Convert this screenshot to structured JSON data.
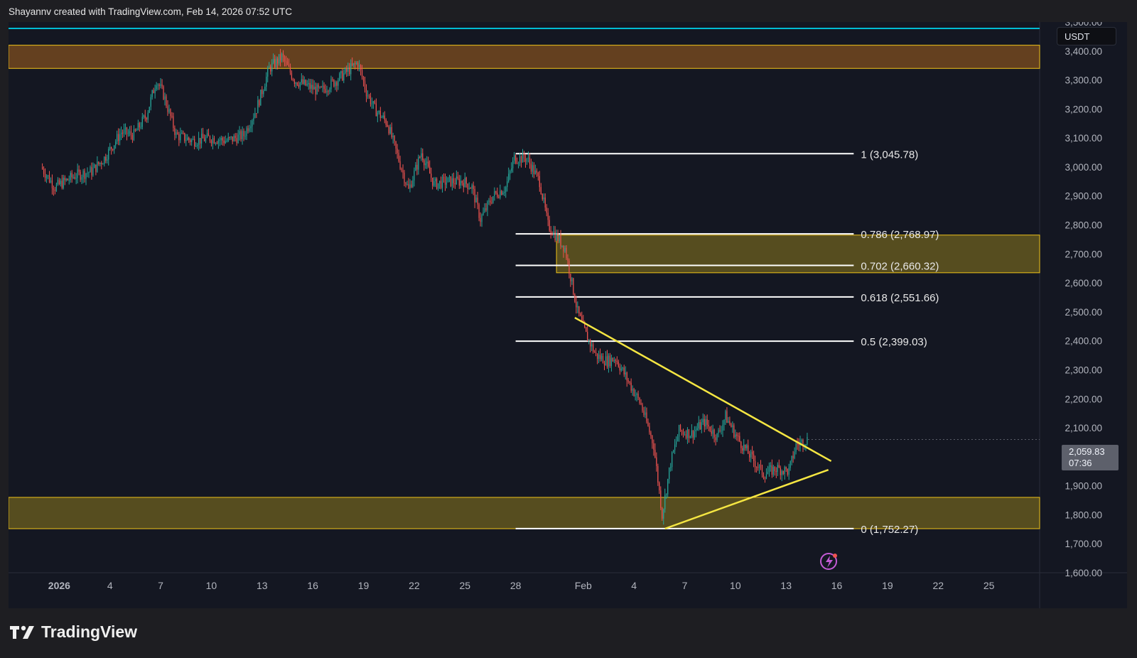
{
  "header": {
    "attribution": "Shayannv created with TradingView.com, Feb 14, 2026 07:52 UTC"
  },
  "currency": "USDT",
  "last_price": {
    "value": "2,059.83",
    "countdown": "07:36"
  },
  "footer": {
    "brand": "TradingView",
    "logo_icon": "tradingview-logo-icon"
  },
  "colors": {
    "up": "#26a69a",
    "down": "#ef5350",
    "supply_zone": "#6b4420",
    "zone_border": "#f0c419",
    "demand_zone": "#5c5220",
    "pattern_lines": "#f5e642",
    "fib_lines": "#ffffff",
    "top_line": "#00bcd4"
  },
  "chart_data": {
    "type": "candlestick",
    "symbol_quote": "USDT",
    "ylim": [
      1600,
      3500
    ],
    "y_ticks": [
      "1,600.00",
      "1,700.00",
      "1,800.00",
      "1,900.00",
      "2,000.00",
      "2,100.00",
      "2,200.00",
      "2,300.00",
      "2,400.00",
      "2,500.00",
      "2,600.00",
      "2,700.00",
      "2,800.00",
      "2,900.00",
      "3,000.00",
      "3,100.00",
      "3,200.00",
      "3,300.00",
      "3,400.00",
      "3,500.00"
    ],
    "x_range": [
      "2025-12-29",
      "2026-02-28"
    ],
    "x_ticks": [
      {
        "date": "2026-01-01",
        "label": "2026"
      },
      {
        "date": "2026-01-04",
        "label": "4"
      },
      {
        "date": "2026-01-07",
        "label": "7"
      },
      {
        "date": "2026-01-10",
        "label": "10"
      },
      {
        "date": "2026-01-13",
        "label": "13"
      },
      {
        "date": "2026-01-16",
        "label": "16"
      },
      {
        "date": "2026-01-19",
        "label": "19"
      },
      {
        "date": "2026-01-22",
        "label": "22"
      },
      {
        "date": "2026-01-25",
        "label": "25"
      },
      {
        "date": "2026-01-28",
        "label": "28"
      },
      {
        "date": "2026-02-01",
        "label": "Feb"
      },
      {
        "date": "2026-02-04",
        "label": "4"
      },
      {
        "date": "2026-02-07",
        "label": "7"
      },
      {
        "date": "2026-02-10",
        "label": "10"
      },
      {
        "date": "2026-02-13",
        "label": "13"
      },
      {
        "date": "2026-02-16",
        "label": "16"
      },
      {
        "date": "2026-02-19",
        "label": "19"
      },
      {
        "date": "2026-02-22",
        "label": "22"
      },
      {
        "date": "2026-02-25",
        "label": "25"
      }
    ],
    "price_path": [
      {
        "d": "2025-12-31 00:00",
        "p": 3000
      },
      {
        "d": "2025-12-31 20:00",
        "p": 2930
      },
      {
        "d": "2026-01-02 00:00",
        "p": 2970
      },
      {
        "d": "2026-01-03 00:00",
        "p": 2985
      },
      {
        "d": "2026-01-03 18:00",
        "p": 3030
      },
      {
        "d": "2026-01-04 18:00",
        "p": 3120
      },
      {
        "d": "2026-01-05 12:00",
        "p": 3110
      },
      {
        "d": "2026-01-06 06:00",
        "p": 3180
      },
      {
        "d": "2026-01-06 20:00",
        "p": 3300
      },
      {
        "d": "2026-01-07 06:00",
        "p": 3250
      },
      {
        "d": "2026-01-08 00:00",
        "p": 3110
      },
      {
        "d": "2026-01-09 00:00",
        "p": 3090
      },
      {
        "d": "2026-01-10 00:00",
        "p": 3100
      },
      {
        "d": "2026-01-11 00:00",
        "p": 3090
      },
      {
        "d": "2026-01-12 00:00",
        "p": 3110
      },
      {
        "d": "2026-01-12 18:00",
        "p": 3200
      },
      {
        "d": "2026-01-13 12:00",
        "p": 3340
      },
      {
        "d": "2026-01-14 06:00",
        "p": 3380
      },
      {
        "d": "2026-01-15 00:00",
        "p": 3300
      },
      {
        "d": "2026-01-16 12:00",
        "p": 3260
      },
      {
        "d": "2026-01-17 12:00",
        "p": 3300
      },
      {
        "d": "2026-01-18 18:00",
        "p": 3360
      },
      {
        "d": "2026-01-19 06:00",
        "p": 3260
      },
      {
        "d": "2026-01-19 18:00",
        "p": 3200
      },
      {
        "d": "2026-01-20 12:00",
        "p": 3150
      },
      {
        "d": "2026-01-21 06:00",
        "p": 3010
      },
      {
        "d": "2026-01-21 18:00",
        "p": 2920
      },
      {
        "d": "2026-01-22 12:00",
        "p": 3050
      },
      {
        "d": "2026-01-23 06:00",
        "p": 2940
      },
      {
        "d": "2026-01-24 00:00",
        "p": 2950
      },
      {
        "d": "2026-01-25 00:00",
        "p": 2950
      },
      {
        "d": "2026-01-25 12:00",
        "p": 2930
      },
      {
        "d": "2026-01-26 00:00",
        "p": 2820
      },
      {
        "d": "2026-01-26 18:00",
        "p": 2900
      },
      {
        "d": "2026-01-27 12:00",
        "p": 2930
      },
      {
        "d": "2026-01-28 00:00",
        "p": 3030
      },
      {
        "d": "2026-01-28 18:00",
        "p": 3030
      },
      {
        "d": "2026-01-29 12:00",
        "p": 2950
      },
      {
        "d": "2026-01-30 00:00",
        "p": 2800
      },
      {
        "d": "2026-01-31 00:00",
        "p": 2720
      },
      {
        "d": "2026-01-31 18:00",
        "p": 2500
      },
      {
        "d": "2026-02-01 06:00",
        "p": 2420
      },
      {
        "d": "2026-02-01 20:00",
        "p": 2350
      },
      {
        "d": "2026-02-02 12:00",
        "p": 2330
      },
      {
        "d": "2026-02-03 00:00",
        "p": 2340
      },
      {
        "d": "2026-02-03 18:00",
        "p": 2260
      },
      {
        "d": "2026-02-04 12:00",
        "p": 2180
      },
      {
        "d": "2026-02-05 06:00",
        "p": 2040
      },
      {
        "d": "2026-02-05 18:00",
        "p": 1800
      },
      {
        "d": "2026-02-06 06:00",
        "p": 1980
      },
      {
        "d": "2026-02-06 18:00",
        "p": 2090
      },
      {
        "d": "2026-02-07 12:00",
        "p": 2080
      },
      {
        "d": "2026-02-08 06:00",
        "p": 2120
      },
      {
        "d": "2026-02-09 00:00",
        "p": 2070
      },
      {
        "d": "2026-02-09 12:00",
        "p": 2140
      },
      {
        "d": "2026-02-10 06:00",
        "p": 2060
      },
      {
        "d": "2026-02-11 00:00",
        "p": 2000
      },
      {
        "d": "2026-02-11 18:00",
        "p": 1940
      },
      {
        "d": "2026-02-12 12:00",
        "p": 1960
      },
      {
        "d": "2026-02-13 06:00",
        "p": 1950
      },
      {
        "d": "2026-02-13 16:00",
        "p": 2040
      },
      {
        "d": "2026-02-14 07:00",
        "p": 2059.83
      }
    ],
    "zones": [
      {
        "from": 3340,
        "to": 3420,
        "kind": "supply",
        "start": "2025-12-29 00:00"
      },
      {
        "from": 2635,
        "to": 2765,
        "kind": "demand",
        "start": "2026-01-30 10:00"
      },
      {
        "from": 1752,
        "to": 1860,
        "kind": "demand",
        "start": "2025-12-29 00:00"
      }
    ],
    "fibonacci": {
      "start": "2026-01-28 00:00",
      "end": "2026-02-17 00:00",
      "levels": [
        {
          "ratio": "1",
          "price": 3045.78,
          "label": "1 (3,045.78)"
        },
        {
          "ratio": "0.786",
          "price": 2768.97,
          "label": "0.786 (2,768.97)"
        },
        {
          "ratio": "0.702",
          "price": 2660.32,
          "label": "0.702 (2,660.32)"
        },
        {
          "ratio": "0.618",
          "price": 2551.66,
          "label": "0.618 (2,551.66)"
        },
        {
          "ratio": "0.5",
          "price": 2399.03,
          "label": "0.5 (2,399.03)"
        },
        {
          "ratio": "0",
          "price": 1752.27,
          "label": "0 (1,752.27)"
        }
      ]
    },
    "trendlines": [
      {
        "name": "descending",
        "from": {
          "d": "2026-01-31 12:00",
          "p": 2480
        },
        "to": {
          "d": "2026-02-15 16:00",
          "p": 1985
        }
      },
      {
        "name": "ascending",
        "from": {
          "d": "2026-02-05 20:00",
          "p": 1752
        },
        "to": {
          "d": "2026-02-15 12:00",
          "p": 1955
        }
      }
    ]
  }
}
